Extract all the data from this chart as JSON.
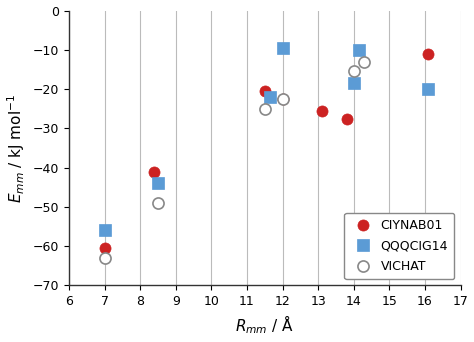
{
  "CIYNAB01": {
    "x": [
      7.0,
      8.4,
      11.5,
      12.0,
      13.1,
      13.8,
      16.1
    ],
    "y": [
      -60.5,
      -41.0,
      -20.5,
      -22.5,
      -25.5,
      -27.5,
      -11.0
    ],
    "color": "#cc2222",
    "marker": "o",
    "markersize": 8,
    "label": "CIYNAB01"
  },
  "QQQCIG14": {
    "x": [
      7.0,
      8.5,
      11.65,
      12.0,
      14.0,
      14.15,
      16.1
    ],
    "y": [
      -56.0,
      -44.0,
      -22.0,
      -9.5,
      -18.5,
      -10.0,
      -20.0
    ],
    "color": "#5b9bd5",
    "marker": "s",
    "markersize": 8,
    "label": "QQQCIG14"
  },
  "VICHAT": {
    "x": [
      7.0,
      8.5,
      11.5,
      12.0,
      14.0,
      14.3
    ],
    "y": [
      -63.0,
      -49.0,
      -25.0,
      -22.5,
      -15.5,
      -13.0
    ],
    "facecolor": "#ffffff",
    "edgecolor": "#888888",
    "marker": "o",
    "markersize": 8,
    "label": "VICHAT"
  },
  "xlim": [
    6,
    17
  ],
  "ylim": [
    -70,
    0
  ],
  "xticks": [
    6,
    7,
    8,
    9,
    10,
    11,
    12,
    13,
    14,
    15,
    16,
    17
  ],
  "yticks": [
    0,
    -10,
    -20,
    -30,
    -40,
    -50,
    -60,
    -70
  ],
  "xlabel": "R_mm / Å",
  "ylabel": "E_mm / kJ mol⁻¹",
  "grid_color": "#bbbbbb",
  "background_color": "#ffffff",
  "legend_loc": "lower right",
  "spine_color": "#333333"
}
